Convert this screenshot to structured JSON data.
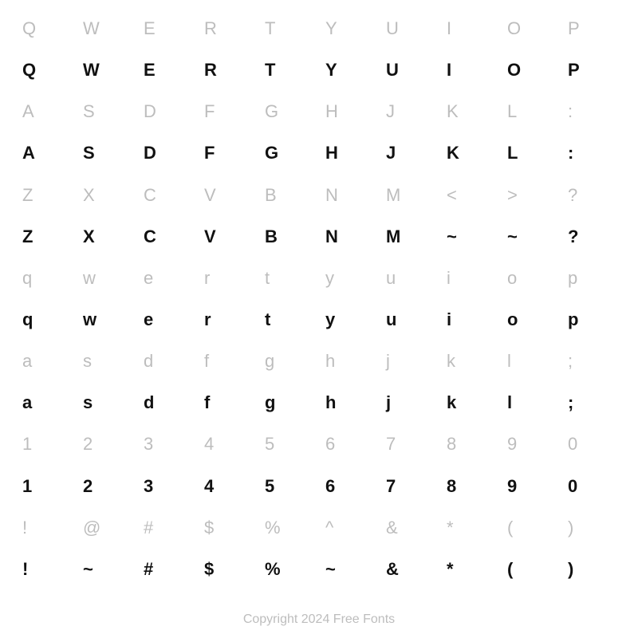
{
  "columns": 10,
  "ref_color": "#bdbdbd",
  "glyph_color": "#111111",
  "background_color": "#ffffff",
  "ref_fontsize": 22,
  "glyph_fontsize": 22,
  "rows": [
    {
      "kind": "ref",
      "cells": [
        "Q",
        "W",
        "E",
        "R",
        "T",
        "Y",
        "U",
        "I",
        "O",
        "P"
      ]
    },
    {
      "kind": "glyph",
      "cells": [
        "Q",
        "W",
        "E",
        "R",
        "T",
        "Y",
        "U",
        "I",
        "O",
        "P"
      ]
    },
    {
      "kind": "ref",
      "cells": [
        "A",
        "S",
        "D",
        "F",
        "G",
        "H",
        "J",
        "K",
        "L",
        ":"
      ]
    },
    {
      "kind": "glyph",
      "cells": [
        "A",
        "S",
        "D",
        "F",
        "G",
        "H",
        "J",
        "K",
        "L",
        ":"
      ]
    },
    {
      "kind": "ref",
      "cells": [
        "Z",
        "X",
        "C",
        "V",
        "B",
        "N",
        "M",
        "<",
        ">",
        "?"
      ]
    },
    {
      "kind": "glyph",
      "cells": [
        "Z",
        "X",
        "C",
        "V",
        "B",
        "N",
        "M",
        "~",
        "~",
        "?"
      ]
    },
    {
      "kind": "ref",
      "cells": [
        "q",
        "w",
        "e",
        "r",
        "t",
        "y",
        "u",
        "i",
        "o",
        "p"
      ]
    },
    {
      "kind": "glyph",
      "cells": [
        "q",
        "w",
        "e",
        "r",
        "t",
        "y",
        "u",
        "i",
        "o",
        "p"
      ]
    },
    {
      "kind": "ref",
      "cells": [
        "a",
        "s",
        "d",
        "f",
        "g",
        "h",
        "j",
        "k",
        "l",
        ";"
      ]
    },
    {
      "kind": "glyph",
      "cells": [
        "a",
        "s",
        "d",
        "f",
        "g",
        "h",
        "j",
        "k",
        "l",
        ";"
      ]
    },
    {
      "kind": "ref",
      "cells": [
        "1",
        "2",
        "3",
        "4",
        "5",
        "6",
        "7",
        "8",
        "9",
        "0"
      ]
    },
    {
      "kind": "glyph",
      "cells": [
        "1",
        "2",
        "3",
        "4",
        "5",
        "6",
        "7",
        "8",
        "9",
        "0"
      ]
    },
    {
      "kind": "ref",
      "cells": [
        "!",
        "@",
        "#",
        "$",
        "%",
        "^",
        "&",
        "*",
        "(",
        ")"
      ]
    },
    {
      "kind": "glyph",
      "cells": [
        "!",
        "~",
        "#",
        "$",
        "%",
        "~",
        "&",
        "*",
        "(",
        ")"
      ]
    }
  ],
  "footer": "Copyright 2024 Free Fonts"
}
